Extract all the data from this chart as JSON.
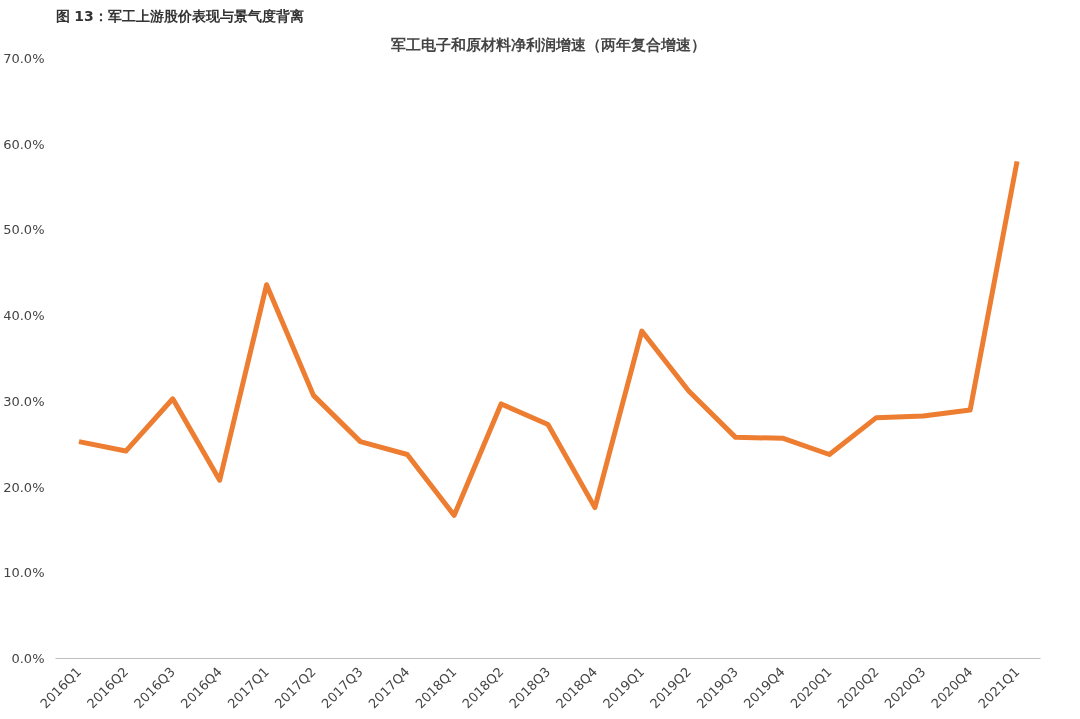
{
  "chart_data": {
    "type": "line",
    "title": "图 13：军工上游股价表现与景气度背离",
    "subtitle": "军工电子和原材料净利润增速（两年复合增速）",
    "categories": [
      "2016Q1",
      "2016Q2",
      "2016Q3",
      "2016Q4",
      "2017Q1",
      "2017Q2",
      "2017Q3",
      "2017Q4",
      "2018Q1",
      "2018Q2",
      "2018Q3",
      "2018Q4",
      "2019Q1",
      "2019Q2",
      "2019Q3",
      "2019Q4",
      "2020Q1",
      "2020Q2",
      "2020Q3",
      "2020Q4",
      "2021Q1"
    ],
    "series": [
      {
        "color": "#ed7d31",
        "values": [
          25.3,
          24.2,
          30.3,
          20.8,
          43.6,
          30.7,
          25.3,
          23.8,
          16.7,
          29.7,
          27.3,
          17.6,
          38.2,
          31.2,
          25.8,
          25.7,
          23.8,
          28.1,
          28.3,
          29.0,
          58.0
        ]
      }
    ],
    "ylim": [
      0,
      70
    ],
    "yticks": [
      {
        "value": 0,
        "label": "0.0%"
      },
      {
        "value": 10,
        "label": "10.0%"
      },
      {
        "value": 20,
        "label": "20.0%"
      },
      {
        "value": 30,
        "label": "30.0%"
      },
      {
        "value": 40,
        "label": "40.0%"
      },
      {
        "value": 50,
        "label": "50.0%"
      },
      {
        "value": 60,
        "label": "60.0%"
      },
      {
        "value": 70,
        "label": "70.0%"
      }
    ],
    "grid": false,
    "marker": "none",
    "line_style": "solid"
  }
}
